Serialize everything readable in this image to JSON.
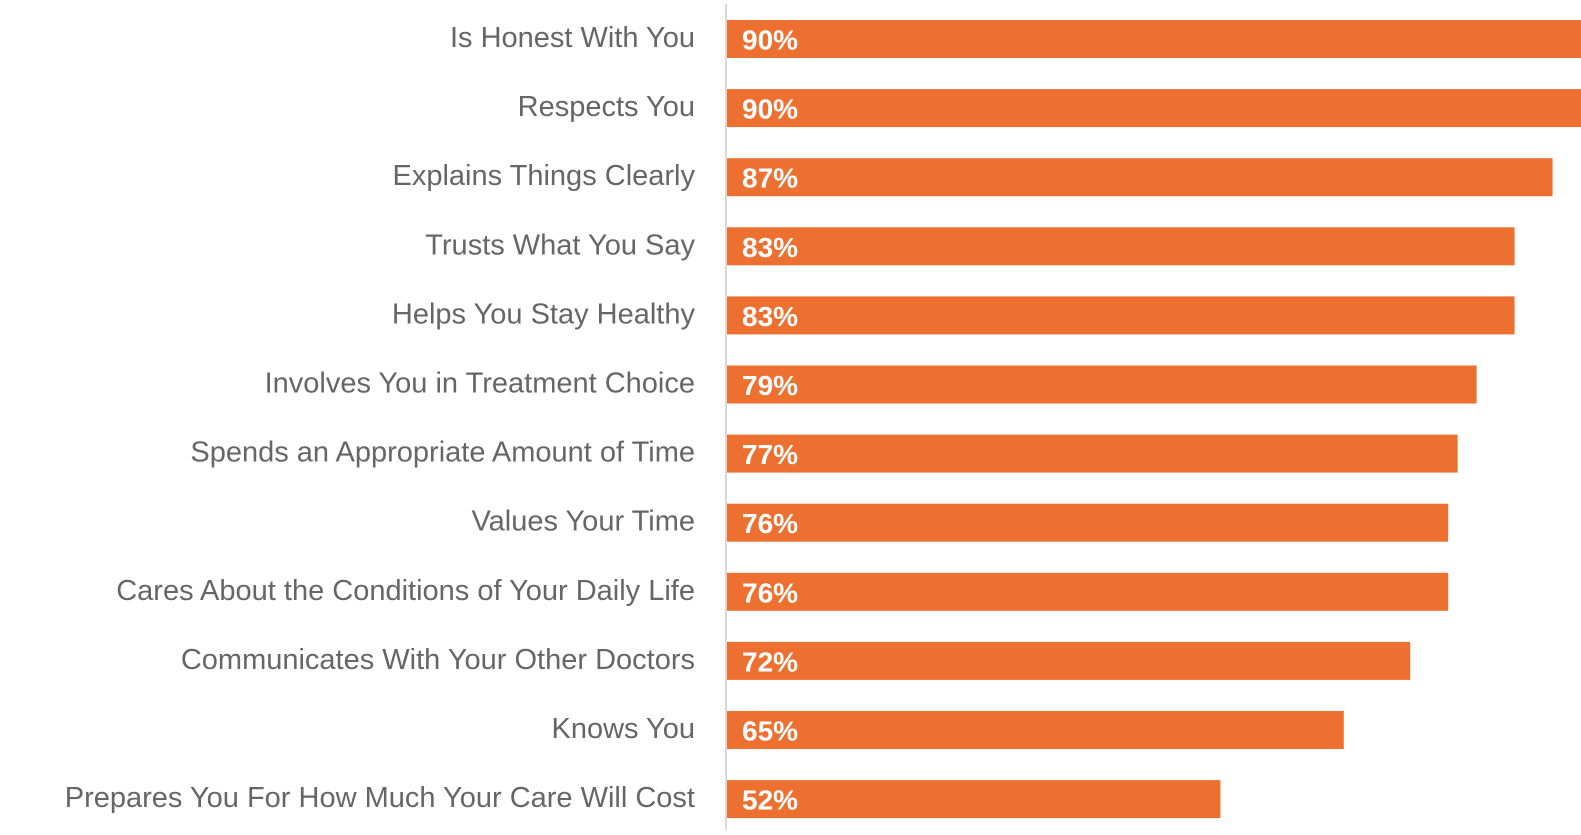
{
  "chart_data": {
    "type": "bar",
    "orientation": "horizontal",
    "categories": [
      "Is Honest With You",
      "Respects You",
      "Explains Things Clearly",
      "Trusts What You Say",
      "Helps You Stay Healthy",
      "Involves You in Treatment Choice",
      "Spends an Appropriate Amount of Time",
      "Values Your Time",
      "Cares About the Conditions of Your Daily Life",
      "Communicates With Your Other Doctors",
      "Knows You",
      "Prepares You For How Much Your Care Will Cost"
    ],
    "values": [
      90,
      90,
      87,
      83,
      83,
      79,
      77,
      76,
      76,
      72,
      65,
      52
    ],
    "value_labels": [
      "90%",
      "90%",
      "87%",
      "83%",
      "83%",
      "79%",
      "77%",
      "76%",
      "76%",
      "72%",
      "65%",
      "52%"
    ],
    "color": "#ed7030",
    "xlim": [
      0,
      90
    ]
  }
}
